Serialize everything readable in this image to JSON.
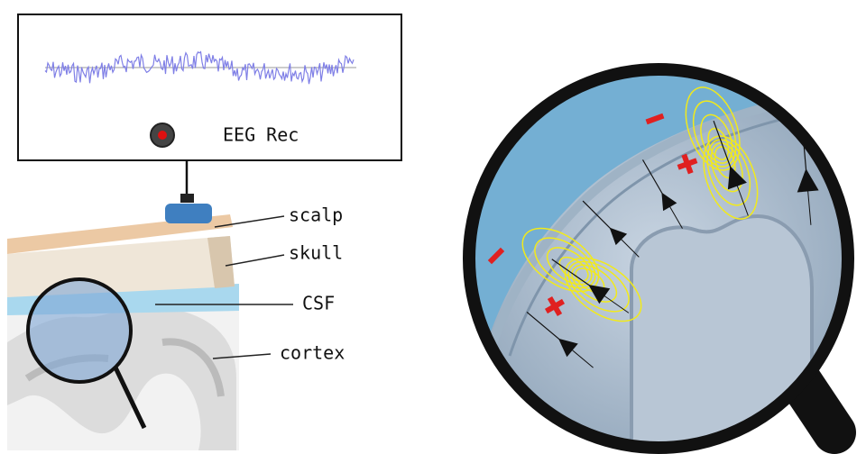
{
  "recorder": {
    "label": "EEG Rec"
  },
  "layers": [
    {
      "label": "scalp"
    },
    {
      "label": "skull"
    },
    {
      "label": "CSF"
    },
    {
      "label": "cortex"
    }
  ]
}
